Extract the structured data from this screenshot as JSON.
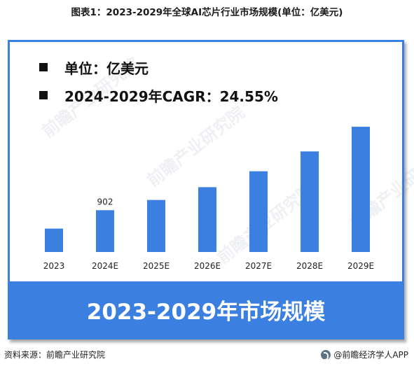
{
  "figure": {
    "title": "图表1：2023-2029年全球AI芯片行业市场规模(单位：亿美元)"
  },
  "notes": [
    {
      "text": "单位：亿美元"
    },
    {
      "text": "2024-2029年CAGR：24.55%"
    }
  ],
  "banner": {
    "text": "2023-2029年市场规模"
  },
  "footer": {
    "source": "资料来源：前瞻产业研究院",
    "brand": "@前瞻经济学人APP",
    "brand_icon": "qianzhan-logo-icon"
  },
  "watermark": {
    "text": "前瞻产业研究院"
  },
  "colors": {
    "bar": "#3b7fe0",
    "frame": "#3b7fe0",
    "banner": "#3b7fe0",
    "banner_text": "#ffffff"
  },
  "chart_data": {
    "type": "bar",
    "categories": [
      "2023",
      "2024E",
      "2025E",
      "2026E",
      "2027E",
      "2028E",
      "2029E"
    ],
    "values": [
      505,
      902,
      1123,
      1399,
      1742,
      2170,
      2703
    ],
    "data_labels": [
      {
        "category": "2024E",
        "text": "902"
      }
    ],
    "title": "",
    "xlabel": "",
    "ylabel": "",
    "ylim": [
      0,
      2900
    ],
    "grid": false,
    "legend": "none"
  }
}
